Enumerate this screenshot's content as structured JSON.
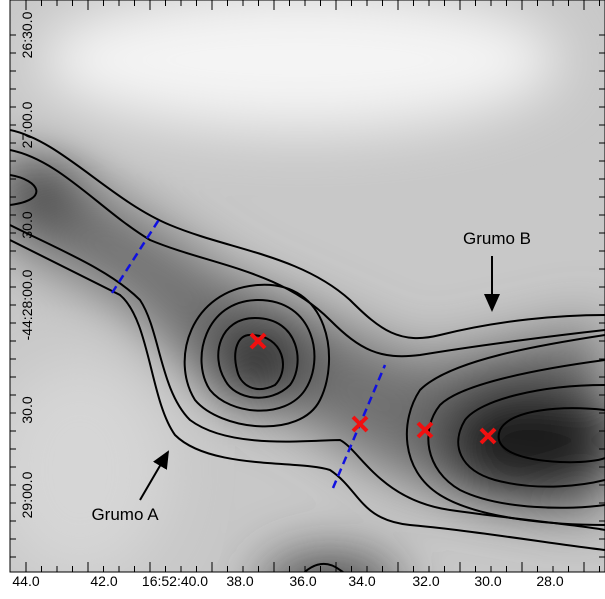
{
  "x_axis_labels": [
    "44.0",
    "42.0",
    "16:52:40.0",
    "38.0",
    "36.0",
    "34.0",
    "32.0",
    "30.0",
    "28.0"
  ],
  "y_axis_labels": [
    "26:30.0",
    "27:00.0",
    "30.0",
    "-44:28:00.0",
    "30.0",
    "29:00.0"
  ],
  "annotations": [
    "Grumo A",
    "Grumo B"
  ]
}
